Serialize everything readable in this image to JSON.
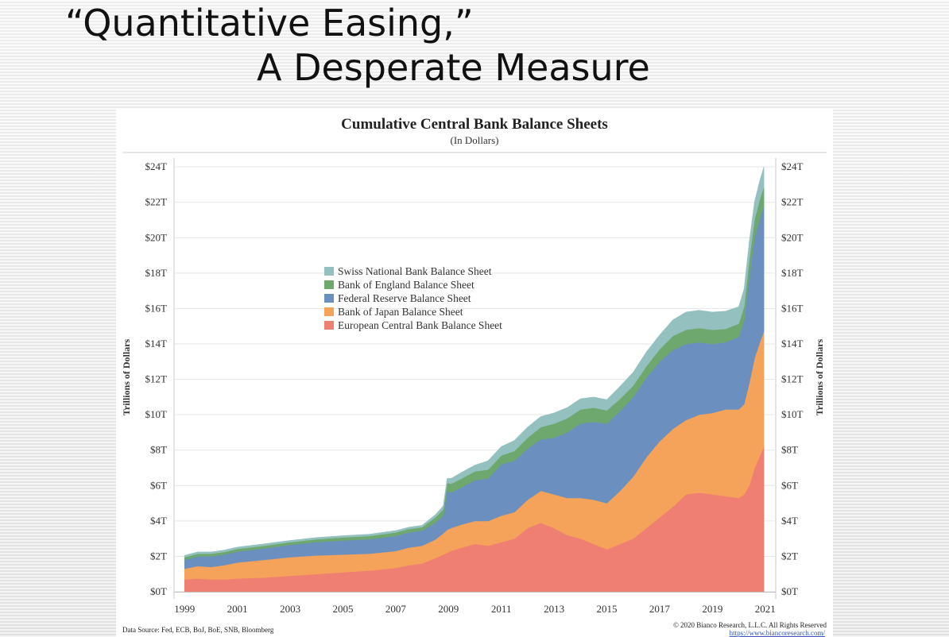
{
  "slide": {
    "title_line_1": "“Quantitative Easing,”",
    "title_line_2": "A Desperate Measure"
  },
  "footer": {
    "data_source": "Data Source: Fed, ECB, BoJ, BoE, SNB, Bloomberg",
    "copyright": "© 2020 Bianco Research, L.L.C. All Rights Reserved",
    "url": "https://www.biancoresearch.com/"
  },
  "chart_data": {
    "type": "area",
    "stacked": true,
    "title": "Cumulative Central Bank Balance Sheets",
    "subtitle": "(In Dollars)",
    "ylabel": "Trillions of Dollars",
    "ylabel_right": "Trillions of Dollars",
    "xlabel": "",
    "xlim": [
      1998.6,
      2021.4
    ],
    "ylim": [
      0,
      24.5
    ],
    "x_ticks": [
      1999,
      2001,
      2003,
      2005,
      2007,
      2009,
      2011,
      2013,
      2015,
      2017,
      2019,
      2021
    ],
    "y_ticks": [
      0,
      2,
      4,
      6,
      8,
      10,
      12,
      14,
      16,
      18,
      20,
      22,
      24
    ],
    "y_tick_labels": [
      "$0T",
      "$2T",
      "$4T",
      "$6T",
      "$8T",
      "$10T",
      "$12T",
      "$14T",
      "$16T",
      "$18T",
      "$20T",
      "$22T",
      "$24T"
    ],
    "grid": "horizontal",
    "legend_position": "upper-left-center",
    "x": [
      1999.0,
      1999.5,
      2000.0,
      2000.5,
      2001.0,
      2002.0,
      2003.0,
      2004.0,
      2005.0,
      2006.0,
      2007.0,
      2007.5,
      2008.0,
      2008.5,
      2008.8,
      2008.95,
      2009.1,
      2009.5,
      2010.0,
      2010.5,
      2011.0,
      2011.5,
      2012.0,
      2012.5,
      2013.0,
      2013.5,
      2014.0,
      2014.5,
      2015.0,
      2015.5,
      2016.0,
      2016.5,
      2017.0,
      2017.5,
      2018.0,
      2018.5,
      2019.0,
      2019.5,
      2020.0,
      2020.2,
      2020.4,
      2020.6,
      2020.8,
      2020.95
    ],
    "series": [
      {
        "name": "European Central Bank Balance Sheet",
        "color": "#ef7f72",
        "values": [
          0.7,
          0.75,
          0.7,
          0.7,
          0.75,
          0.8,
          0.9,
          1.0,
          1.1,
          1.2,
          1.35,
          1.5,
          1.6,
          1.9,
          2.1,
          2.2,
          2.3,
          2.5,
          2.7,
          2.6,
          2.8,
          3.0,
          3.6,
          3.9,
          3.6,
          3.2,
          3.0,
          2.7,
          2.4,
          2.7,
          3.0,
          3.6,
          4.2,
          4.8,
          5.5,
          5.6,
          5.5,
          5.4,
          5.3,
          5.5,
          6.0,
          7.0,
          7.7,
          8.2
        ]
      },
      {
        "name": "Bank of Japan Balance Sheet",
        "color": "#f5a35a",
        "values": [
          0.6,
          0.7,
          0.7,
          0.8,
          0.9,
          1.0,
          1.05,
          1.05,
          1.0,
          0.95,
          0.95,
          1.0,
          1.0,
          1.05,
          1.2,
          1.3,
          1.3,
          1.3,
          1.3,
          1.4,
          1.5,
          1.5,
          1.6,
          1.8,
          1.9,
          2.1,
          2.3,
          2.5,
          2.6,
          3.0,
          3.5,
          4.0,
          4.3,
          4.4,
          4.2,
          4.4,
          4.6,
          4.9,
          5.0,
          5.1,
          5.8,
          6.2,
          6.4,
          6.5
        ]
      },
      {
        "name": "Federal Reserve Balance Sheet",
        "color": "#6b8fbf",
        "values": [
          0.5,
          0.55,
          0.6,
          0.6,
          0.62,
          0.65,
          0.7,
          0.75,
          0.8,
          0.82,
          0.85,
          0.85,
          0.85,
          0.95,
          1.0,
          2.2,
          2.0,
          2.1,
          2.3,
          2.4,
          2.9,
          2.9,
          2.9,
          2.9,
          3.2,
          3.7,
          4.2,
          4.4,
          4.5,
          4.5,
          4.5,
          4.5,
          4.5,
          4.45,
          4.3,
          4.1,
          3.9,
          3.8,
          4.1,
          4.7,
          6.0,
          6.8,
          7.0,
          7.1
        ]
      },
      {
        "name": "Bank of England Balance Sheet",
        "color": "#6ea86e",
        "values": [
          0.15,
          0.15,
          0.15,
          0.15,
          0.15,
          0.15,
          0.15,
          0.16,
          0.17,
          0.18,
          0.2,
          0.2,
          0.2,
          0.3,
          0.35,
          0.45,
          0.5,
          0.5,
          0.5,
          0.5,
          0.5,
          0.55,
          0.6,
          0.7,
          0.8,
          0.8,
          0.8,
          0.8,
          0.75,
          0.7,
          0.65,
          0.65,
          0.7,
          0.8,
          0.8,
          0.8,
          0.8,
          0.75,
          0.75,
          0.8,
          1.0,
          1.05,
          1.1,
          1.1
        ]
      },
      {
        "name": "Swiss National Bank Balance Sheet",
        "color": "#94c1c0",
        "values": [
          0.1,
          0.1,
          0.1,
          0.1,
          0.1,
          0.1,
          0.1,
          0.1,
          0.1,
          0.1,
          0.1,
          0.1,
          0.1,
          0.15,
          0.2,
          0.25,
          0.3,
          0.35,
          0.35,
          0.5,
          0.5,
          0.6,
          0.6,
          0.6,
          0.6,
          0.6,
          0.6,
          0.6,
          0.6,
          0.7,
          0.75,
          0.8,
          0.8,
          0.9,
          1.0,
          1.0,
          1.0,
          1.0,
          0.95,
          1.0,
          1.0,
          1.0,
          1.05,
          1.1
        ]
      }
    ],
    "legend_order": [
      "Swiss National Bank Balance Sheet",
      "Bank of England Balance Sheet",
      "Federal Reserve Balance Sheet",
      "Bank of Japan Balance Sheet",
      "European Central Bank Balance Sheet"
    ]
  }
}
